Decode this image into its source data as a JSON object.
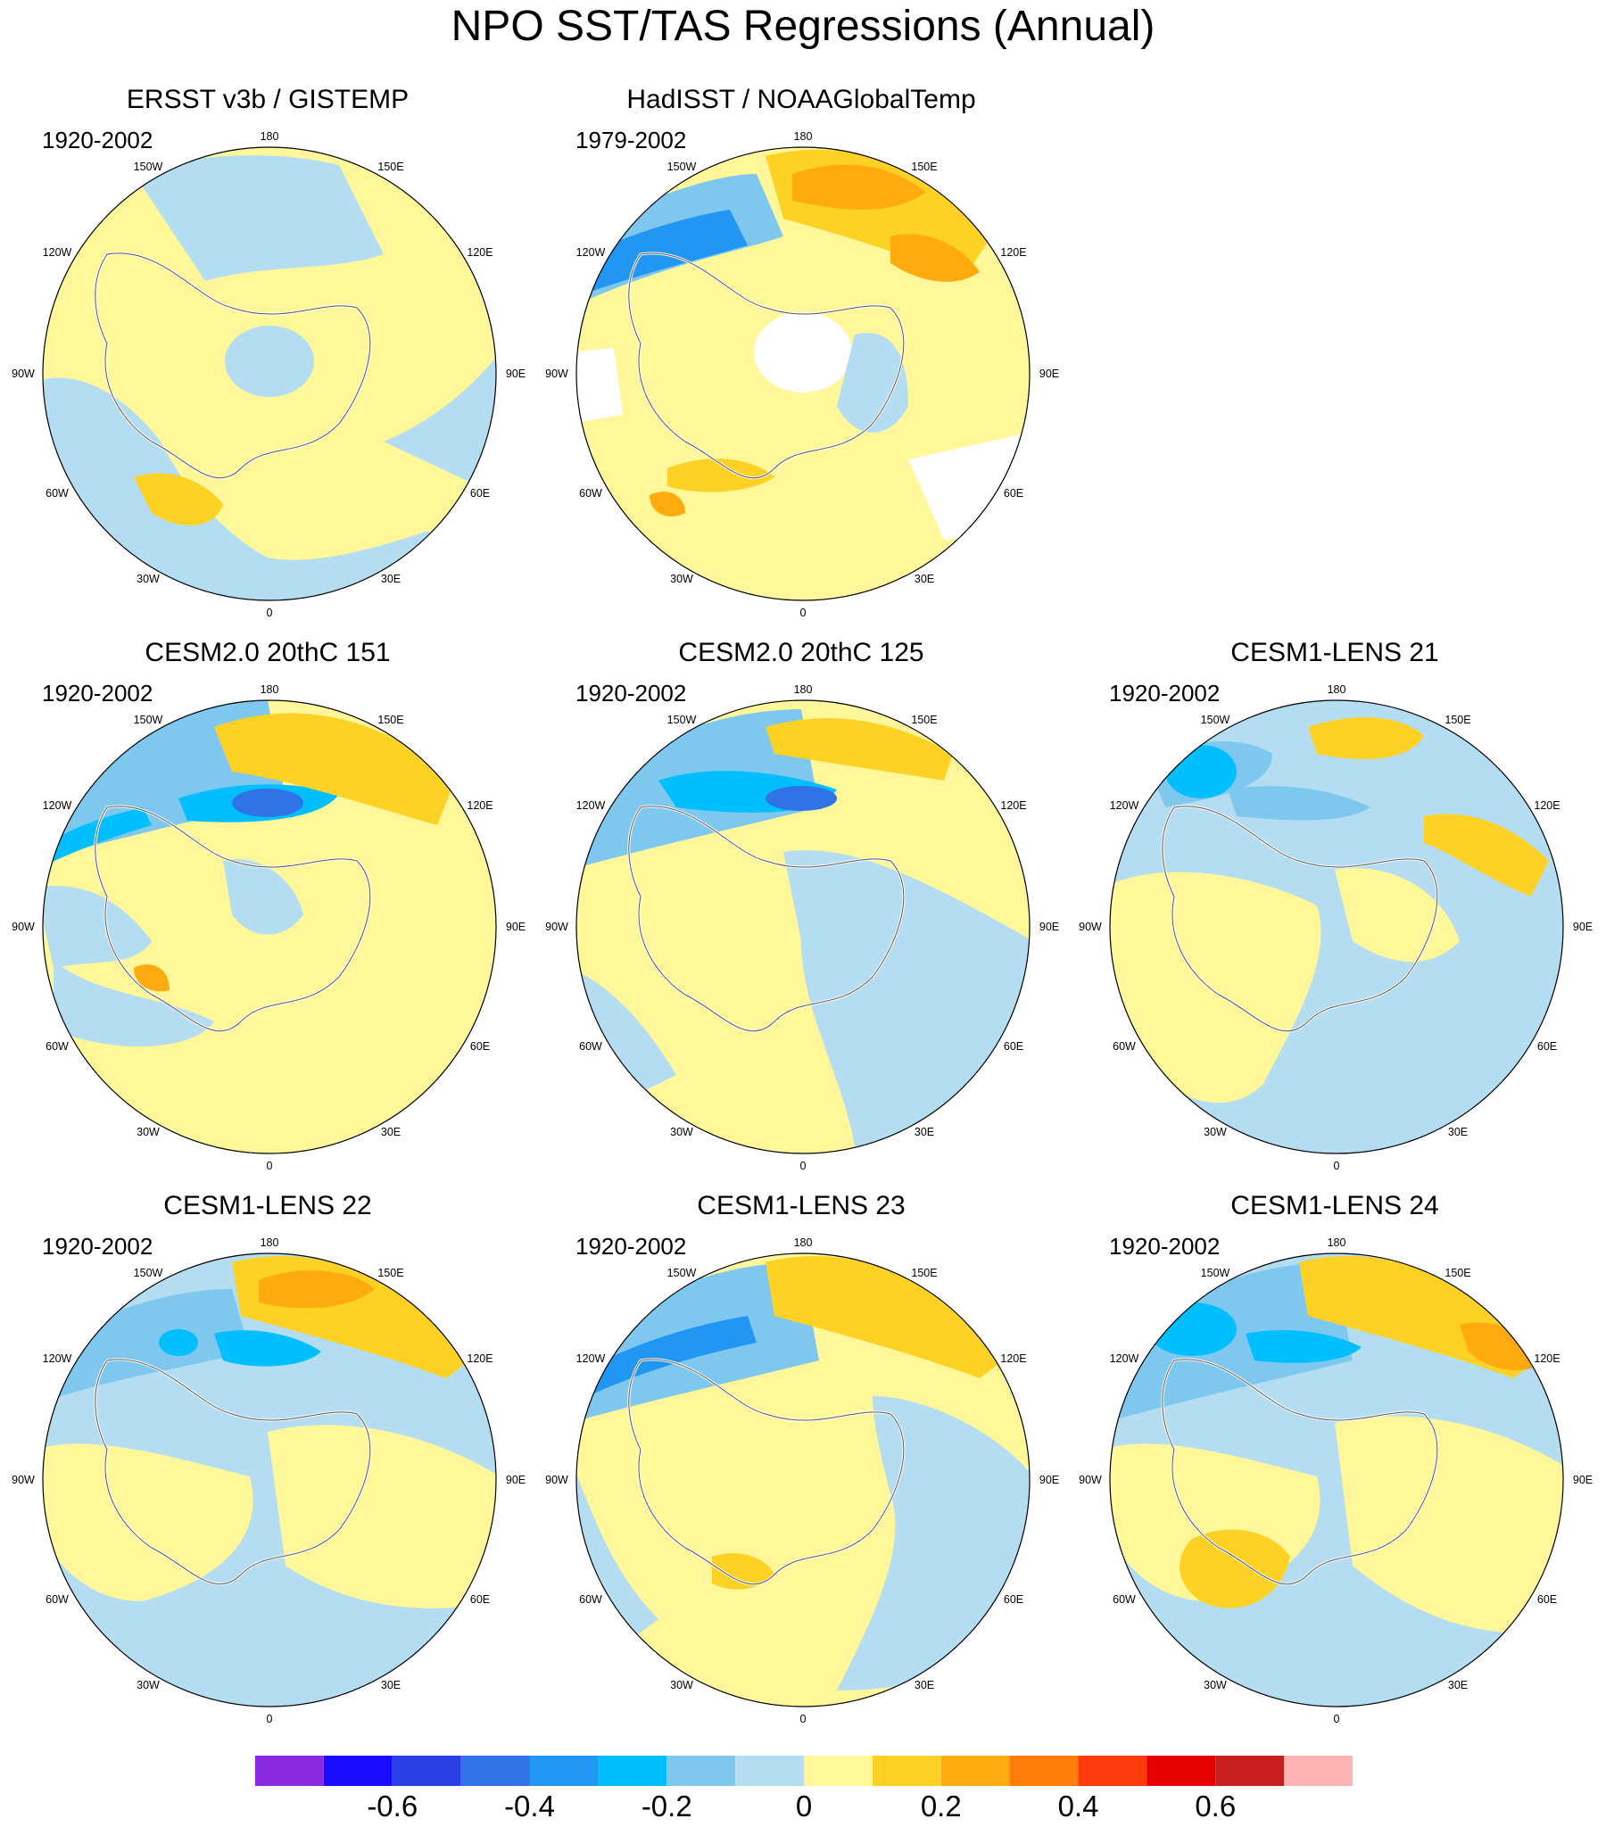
{
  "title": "NPO SST/TAS Regressions (Annual)",
  "longitude_labels": [
    "180",
    "150E",
    "120E",
    "90E",
    "60E",
    "30E",
    "0",
    "30W",
    "60W",
    "90W",
    "120W",
    "150W"
  ],
  "panels": [
    {
      "title": "ERSST v3b / GISTEMP",
      "period": "1920-2002"
    },
    {
      "title": "HadISST / NOAAGlobalTemp",
      "period": "1979-2002"
    },
    {
      "title": "CESM2.0 20thC 151",
      "period": "1920-2002"
    },
    {
      "title": "CESM2.0 20thC 125",
      "period": "1920-2002"
    },
    {
      "title": "CESM1-LENS 21",
      "period": "1920-2002"
    },
    {
      "title": "CESM1-LENS 22",
      "period": "1920-2002"
    },
    {
      "title": "CESM1-LENS 23",
      "period": "1920-2002"
    },
    {
      "title": "CESM1-LENS 24",
      "period": "1920-2002"
    }
  ],
  "colorbar": {
    "colors": [
      "#8a2be2",
      "#1a0cff",
      "#2a3fe4",
      "#3072e8",
      "#2196f3",
      "#00bfff",
      "#7ec8f0",
      "#b5ddf2",
      "#fff79a",
      "#fdd225",
      "#ffab0f",
      "#ff7b0a",
      "#ff3a0a",
      "#e60000",
      "#c81e1e",
      "#ffb3b3"
    ],
    "tick_labels": [
      "-0.6",
      "-0.4",
      "-0.2",
      "0",
      "0.2",
      "0.4",
      "0.6"
    ],
    "tick_values": [
      -0.6,
      -0.4,
      -0.2,
      0,
      0.2,
      0.4,
      0.6
    ],
    "min": -0.8,
    "max": 0.8
  }
}
